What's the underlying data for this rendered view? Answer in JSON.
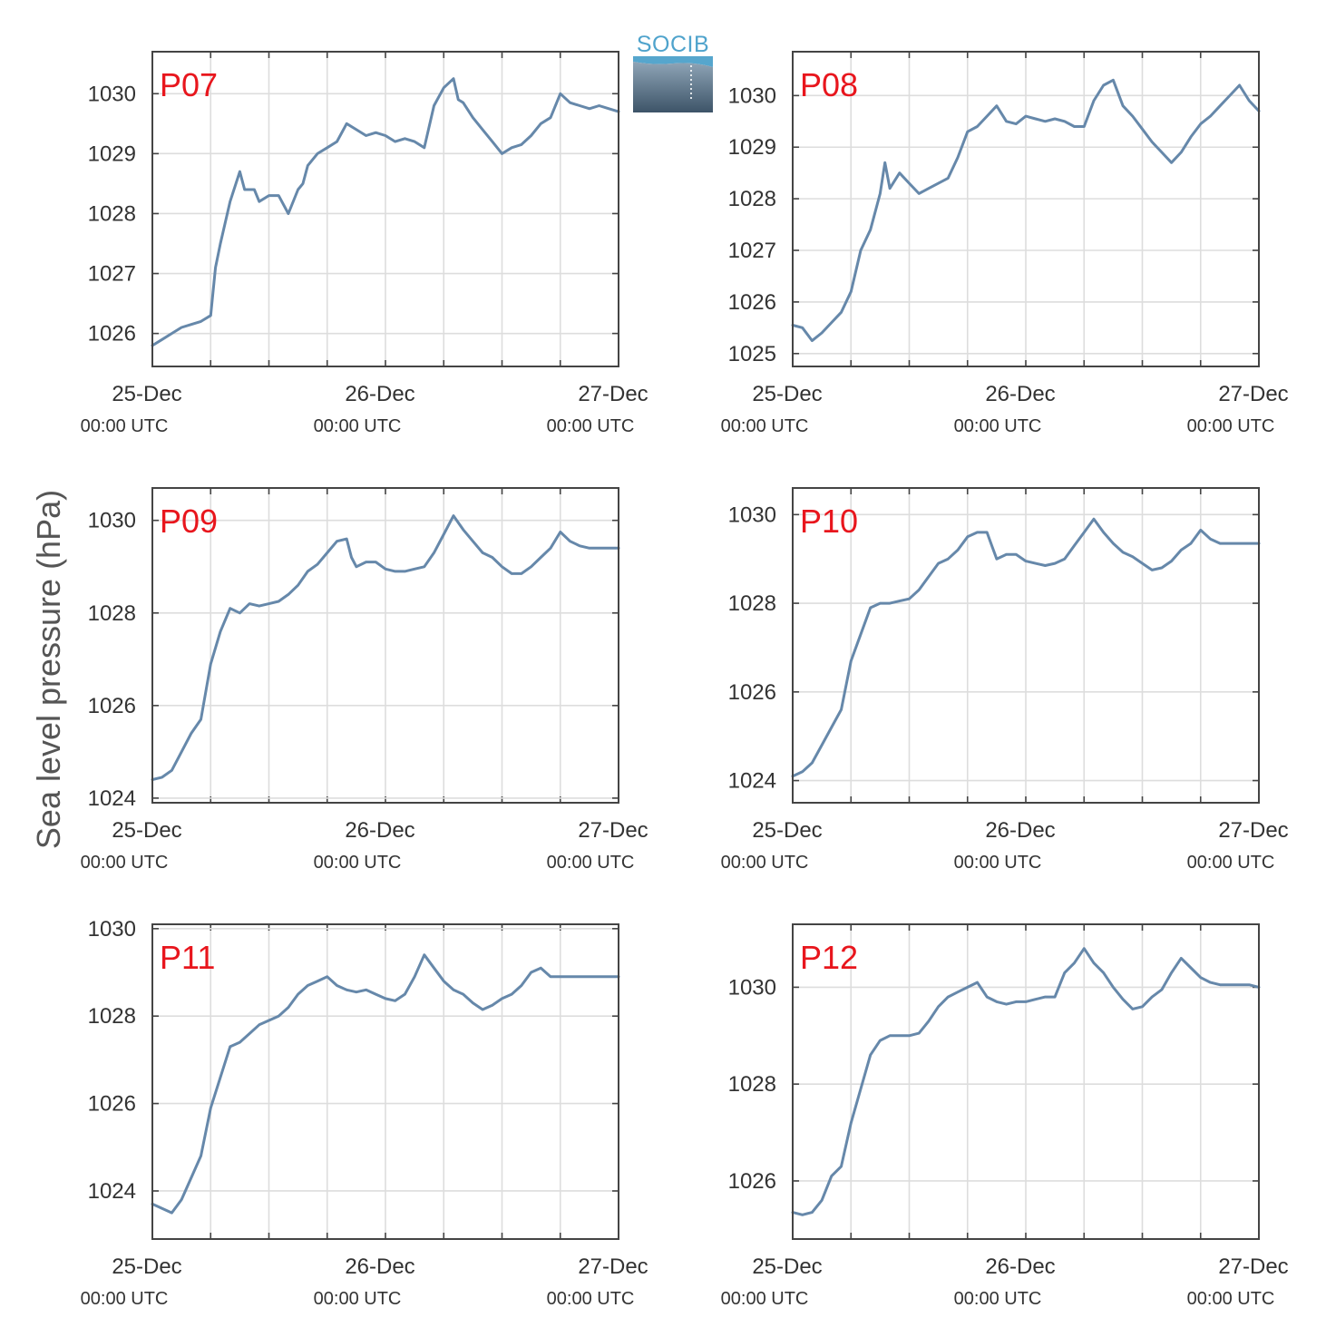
{
  "ylabel": "Sea level pressure (hPa)",
  "logo": {
    "text": "SOCIB"
  },
  "colors": {
    "series": "#6688aa",
    "panel_label": "#e8161d",
    "grid": "#dddddd",
    "axis": "#444444"
  },
  "chart_data": [
    {
      "type": "line",
      "label": "P07",
      "xlim": [
        0,
        48
      ],
      "ylim": [
        1025.45,
        1030.7
      ],
      "yticks": [
        1026,
        1027,
        1028,
        1029,
        1030
      ],
      "xticks": [
        {
          "date": "25-Dec",
          "time": "00:00 UTC"
        },
        {
          "date": "26-Dec",
          "time": "00:00 UTC"
        },
        {
          "date": "27-Dec",
          "time": "00:00 UTC"
        }
      ],
      "grid": true,
      "x": [
        0,
        1,
        2,
        3,
        4,
        5,
        6,
        6.5,
        7,
        8,
        9,
        9.5,
        10,
        10.5,
        11,
        12,
        13,
        14,
        15,
        15.5,
        16,
        17,
        18,
        19,
        20,
        21,
        22,
        23,
        24,
        25,
        26,
        27,
        28,
        29,
        30,
        31,
        31.5,
        32,
        33,
        34,
        35,
        36,
        37,
        38,
        39,
        40,
        41,
        42,
        43,
        44,
        45,
        46,
        47,
        48
      ],
      "y": [
        1025.8,
        1025.9,
        1026.0,
        1026.1,
        1026.15,
        1026.2,
        1026.3,
        1027.1,
        1027.5,
        1028.2,
        1028.7,
        1028.4,
        1028.4,
        1028.4,
        1028.2,
        1028.3,
        1028.3,
        1028.0,
        1028.4,
        1028.5,
        1028.8,
        1029.0,
        1029.1,
        1029.2,
        1029.5,
        1029.4,
        1029.3,
        1029.35,
        1029.3,
        1029.2,
        1029.25,
        1029.2,
        1029.1,
        1029.8,
        1030.1,
        1030.25,
        1029.9,
        1029.85,
        1029.6,
        1029.4,
        1029.2,
        1029.0,
        1029.1,
        1029.15,
        1029.3,
        1029.5,
        1029.6,
        1030.0,
        1029.85,
        1029.8,
        1029.75,
        1029.8,
        1029.75,
        1029.7
      ]
    },
    {
      "type": "line",
      "label": "P08",
      "xlim": [
        0,
        48
      ],
      "ylim": [
        1024.75,
        1030.85
      ],
      "yticks": [
        1025,
        1026,
        1027,
        1028,
        1029,
        1030
      ],
      "xticks": [
        {
          "date": "25-Dec",
          "time": "00:00 UTC"
        },
        {
          "date": "26-Dec",
          "time": "00:00 UTC"
        },
        {
          "date": "27-Dec",
          "time": "00:00 UTC"
        }
      ],
      "grid": true,
      "x": [
        0,
        1,
        2,
        3,
        4,
        5,
        6,
        7,
        8,
        9,
        9.5,
        10,
        11,
        12,
        13,
        14,
        15,
        16,
        17,
        18,
        19,
        20,
        21,
        22,
        23,
        24,
        25,
        26,
        27,
        28,
        29,
        30,
        31,
        32,
        33,
        34,
        35,
        36,
        37,
        38,
        39,
        40,
        41,
        42,
        43,
        44,
        45,
        46,
        47,
        48
      ],
      "y": [
        1025.55,
        1025.5,
        1025.25,
        1025.4,
        1025.6,
        1025.8,
        1026.2,
        1027.0,
        1027.4,
        1028.1,
        1028.7,
        1028.2,
        1028.5,
        1028.3,
        1028.1,
        1028.2,
        1028.3,
        1028.4,
        1028.8,
        1029.3,
        1029.4,
        1029.6,
        1029.8,
        1029.5,
        1029.45,
        1029.6,
        1029.55,
        1029.5,
        1029.55,
        1029.5,
        1029.4,
        1029.4,
        1029.9,
        1030.2,
        1030.3,
        1029.8,
        1029.6,
        1029.35,
        1029.1,
        1028.9,
        1028.7,
        1028.9,
        1029.2,
        1029.45,
        1029.6,
        1029.8,
        1030.0,
        1030.2,
        1029.9,
        1029.7
      ]
    },
    {
      "type": "line",
      "label": "P09",
      "xlim": [
        0,
        48
      ],
      "ylim": [
        1023.9,
        1030.7
      ],
      "yticks": [
        1024,
        1026,
        1028,
        1030
      ],
      "xticks": [
        {
          "date": "25-Dec",
          "time": "00:00 UTC"
        },
        {
          "date": "26-Dec",
          "time": "00:00 UTC"
        },
        {
          "date": "27-Dec",
          "time": "00:00 UTC"
        }
      ],
      "grid": true,
      "x": [
        0,
        1,
        2,
        3,
        4,
        5,
        6,
        7,
        8,
        9,
        10,
        11,
        12,
        13,
        14,
        15,
        16,
        17,
        18,
        19,
        20,
        20.5,
        21,
        22,
        23,
        24,
        25,
        26,
        27,
        28,
        29,
        30,
        31,
        32,
        33,
        34,
        35,
        36,
        37,
        38,
        39,
        40,
        41,
        42,
        43,
        44,
        45,
        46,
        47,
        48
      ],
      "y": [
        1024.4,
        1024.45,
        1024.6,
        1025.0,
        1025.4,
        1025.7,
        1026.9,
        1027.6,
        1028.1,
        1028.0,
        1028.2,
        1028.15,
        1028.2,
        1028.25,
        1028.4,
        1028.6,
        1028.9,
        1029.05,
        1029.3,
        1029.55,
        1029.6,
        1029.2,
        1029.0,
        1029.1,
        1029.1,
        1028.95,
        1028.9,
        1028.9,
        1028.95,
        1029.0,
        1029.3,
        1029.7,
        1030.1,
        1029.8,
        1029.55,
        1029.3,
        1029.2,
        1029.0,
        1028.85,
        1028.85,
        1029.0,
        1029.2,
        1029.4,
        1029.75,
        1029.55,
        1029.45,
        1029.4,
        1029.4,
        1029.4,
        1029.4
      ]
    },
    {
      "type": "line",
      "label": "P10",
      "xlim": [
        0,
        48
      ],
      "ylim": [
        1023.5,
        1030.6
      ],
      "yticks": [
        1024,
        1026,
        1028,
        1030
      ],
      "xticks": [
        {
          "date": "25-Dec",
          "time": "00:00 UTC"
        },
        {
          "date": "26-Dec",
          "time": "00:00 UTC"
        },
        {
          "date": "27-Dec",
          "time": "00:00 UTC"
        }
      ],
      "grid": true,
      "x": [
        0,
        1,
        2,
        3,
        4,
        5,
        6,
        7,
        8,
        9,
        10,
        11,
        12,
        13,
        14,
        15,
        16,
        17,
        18,
        19,
        20,
        20.5,
        21,
        22,
        23,
        24,
        25,
        26,
        27,
        28,
        29,
        30,
        31,
        32,
        33,
        34,
        35,
        36,
        37,
        38,
        39,
        40,
        41,
        42,
        43,
        44,
        45,
        46,
        47,
        48
      ],
      "y": [
        1024.1,
        1024.2,
        1024.4,
        1024.8,
        1025.2,
        1025.6,
        1026.7,
        1027.3,
        1027.9,
        1028.0,
        1028.0,
        1028.05,
        1028.1,
        1028.3,
        1028.6,
        1028.9,
        1029.0,
        1029.2,
        1029.5,
        1029.6,
        1029.6,
        1029.3,
        1029.0,
        1029.1,
        1029.1,
        1028.95,
        1028.9,
        1028.85,
        1028.9,
        1029.0,
        1029.3,
        1029.6,
        1029.9,
        1029.6,
        1029.35,
        1029.15,
        1029.05,
        1028.9,
        1028.75,
        1028.8,
        1028.95,
        1029.2,
        1029.35,
        1029.65,
        1029.45,
        1029.35,
        1029.35,
        1029.35,
        1029.35,
        1029.35
      ]
    },
    {
      "type": "line",
      "label": "P11",
      "xlim": [
        0,
        48
      ],
      "ylim": [
        1022.9,
        1030.1
      ],
      "yticks": [
        1024,
        1026,
        1028,
        1030
      ],
      "xticks": [
        {
          "date": "25-Dec",
          "time": "00:00 UTC"
        },
        {
          "date": "26-Dec",
          "time": "00:00 UTC"
        },
        {
          "date": "27-Dec",
          "time": "00:00 UTC"
        }
      ],
      "grid": true,
      "x": [
        0,
        1,
        2,
        3,
        4,
        5,
        6,
        7,
        8,
        9,
        10,
        11,
        12,
        13,
        14,
        15,
        16,
        17,
        18,
        19,
        20,
        21,
        22,
        23,
        24,
        25,
        26,
        27,
        28,
        29,
        30,
        31,
        32,
        33,
        34,
        35,
        36,
        37,
        38,
        39,
        40,
        41,
        42,
        43,
        44,
        45,
        46,
        47,
        48
      ],
      "y": [
        1023.7,
        1023.6,
        1023.5,
        1023.8,
        1024.3,
        1024.8,
        1025.9,
        1026.6,
        1027.3,
        1027.4,
        1027.6,
        1027.8,
        1027.9,
        1028.0,
        1028.2,
        1028.5,
        1028.7,
        1028.8,
        1028.9,
        1028.7,
        1028.6,
        1028.55,
        1028.6,
        1028.5,
        1028.4,
        1028.35,
        1028.5,
        1028.9,
        1029.4,
        1029.1,
        1028.8,
        1028.6,
        1028.5,
        1028.3,
        1028.15,
        1028.25,
        1028.4,
        1028.5,
        1028.7,
        1029.0,
        1029.1,
        1028.9,
        1028.9,
        1028.9,
        1028.9,
        1028.9,
        1028.9,
        1028.9,
        1028.9
      ]
    },
    {
      "type": "line",
      "label": "P12",
      "xlim": [
        0,
        48
      ],
      "ylim": [
        1024.8,
        1031.3
      ],
      "yticks": [
        1026,
        1028,
        1030
      ],
      "xticks": [
        {
          "date": "25-Dec",
          "time": "00:00 UTC"
        },
        {
          "date": "26-Dec",
          "time": "00:00 UTC"
        },
        {
          "date": "27-Dec",
          "time": "00:00 UTC"
        }
      ],
      "grid": true,
      "x": [
        0,
        1,
        2,
        3,
        4,
        5,
        6,
        7,
        8,
        9,
        10,
        11,
        12,
        13,
        14,
        15,
        16,
        17,
        18,
        19,
        20,
        21,
        22,
        23,
        24,
        25,
        26,
        27,
        28,
        29,
        30,
        31,
        32,
        33,
        34,
        35,
        36,
        37,
        38,
        39,
        40,
        41,
        42,
        43,
        44,
        45,
        46,
        47,
        48
      ],
      "y": [
        1025.35,
        1025.3,
        1025.35,
        1025.6,
        1026.1,
        1026.3,
        1027.2,
        1027.9,
        1028.6,
        1028.9,
        1029.0,
        1029.0,
        1029.0,
        1029.05,
        1029.3,
        1029.6,
        1029.8,
        1029.9,
        1030.0,
        1030.1,
        1029.8,
        1029.7,
        1029.65,
        1029.7,
        1029.7,
        1029.75,
        1029.8,
        1029.8,
        1030.3,
        1030.5,
        1030.8,
        1030.5,
        1030.3,
        1030.0,
        1029.75,
        1029.55,
        1029.6,
        1029.8,
        1029.95,
        1030.3,
        1030.6,
        1030.4,
        1030.2,
        1030.1,
        1030.05,
        1030.05,
        1030.05,
        1030.05,
        1030.0
      ]
    }
  ]
}
